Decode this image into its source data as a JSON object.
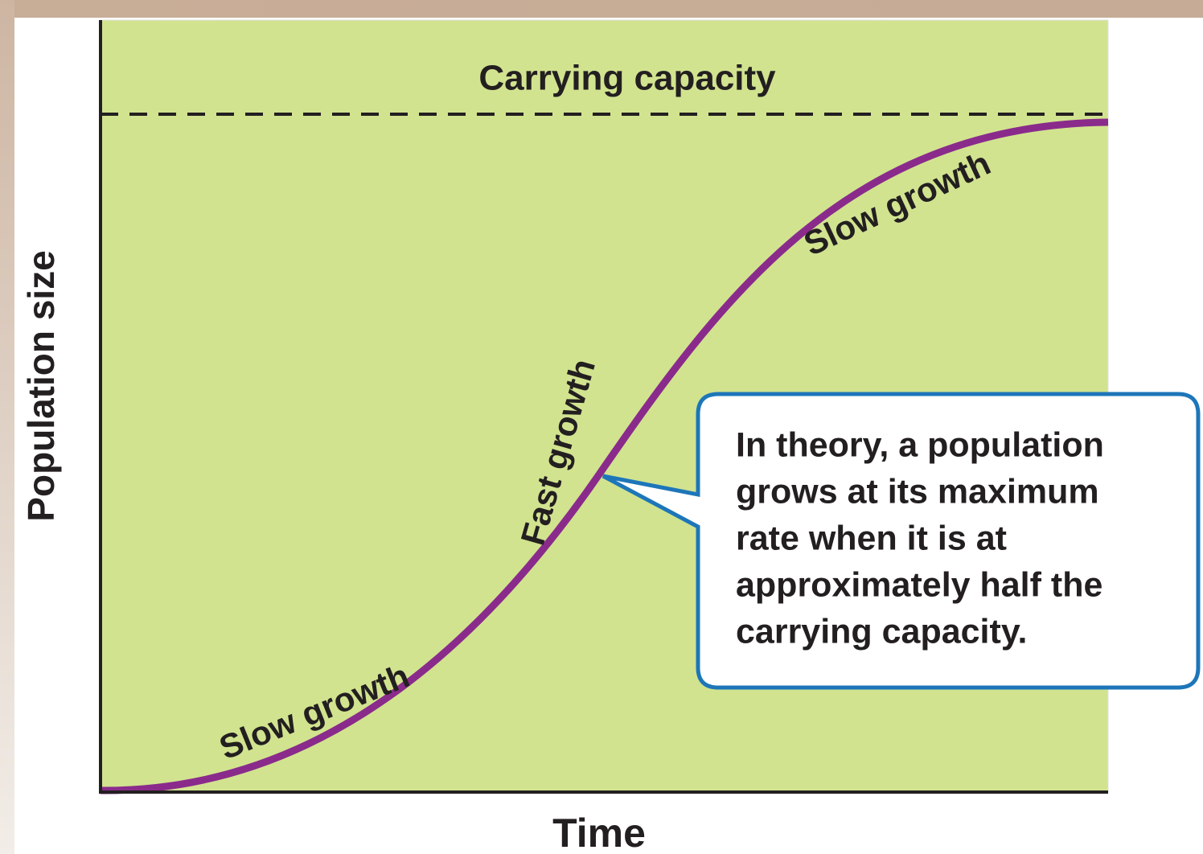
{
  "title": "Carrying capacity",
  "axes": {
    "y_label": "Population size",
    "x_label": "Time"
  },
  "curve_labels": [
    "Slow growth",
    "Fast growth",
    "Slow growth"
  ],
  "callout": {
    "lines": [
      "In theory, a population",
      "grows at its maximum",
      "rate when it is at",
      "approximately half the",
      "carrying capacity."
    ]
  }
}
